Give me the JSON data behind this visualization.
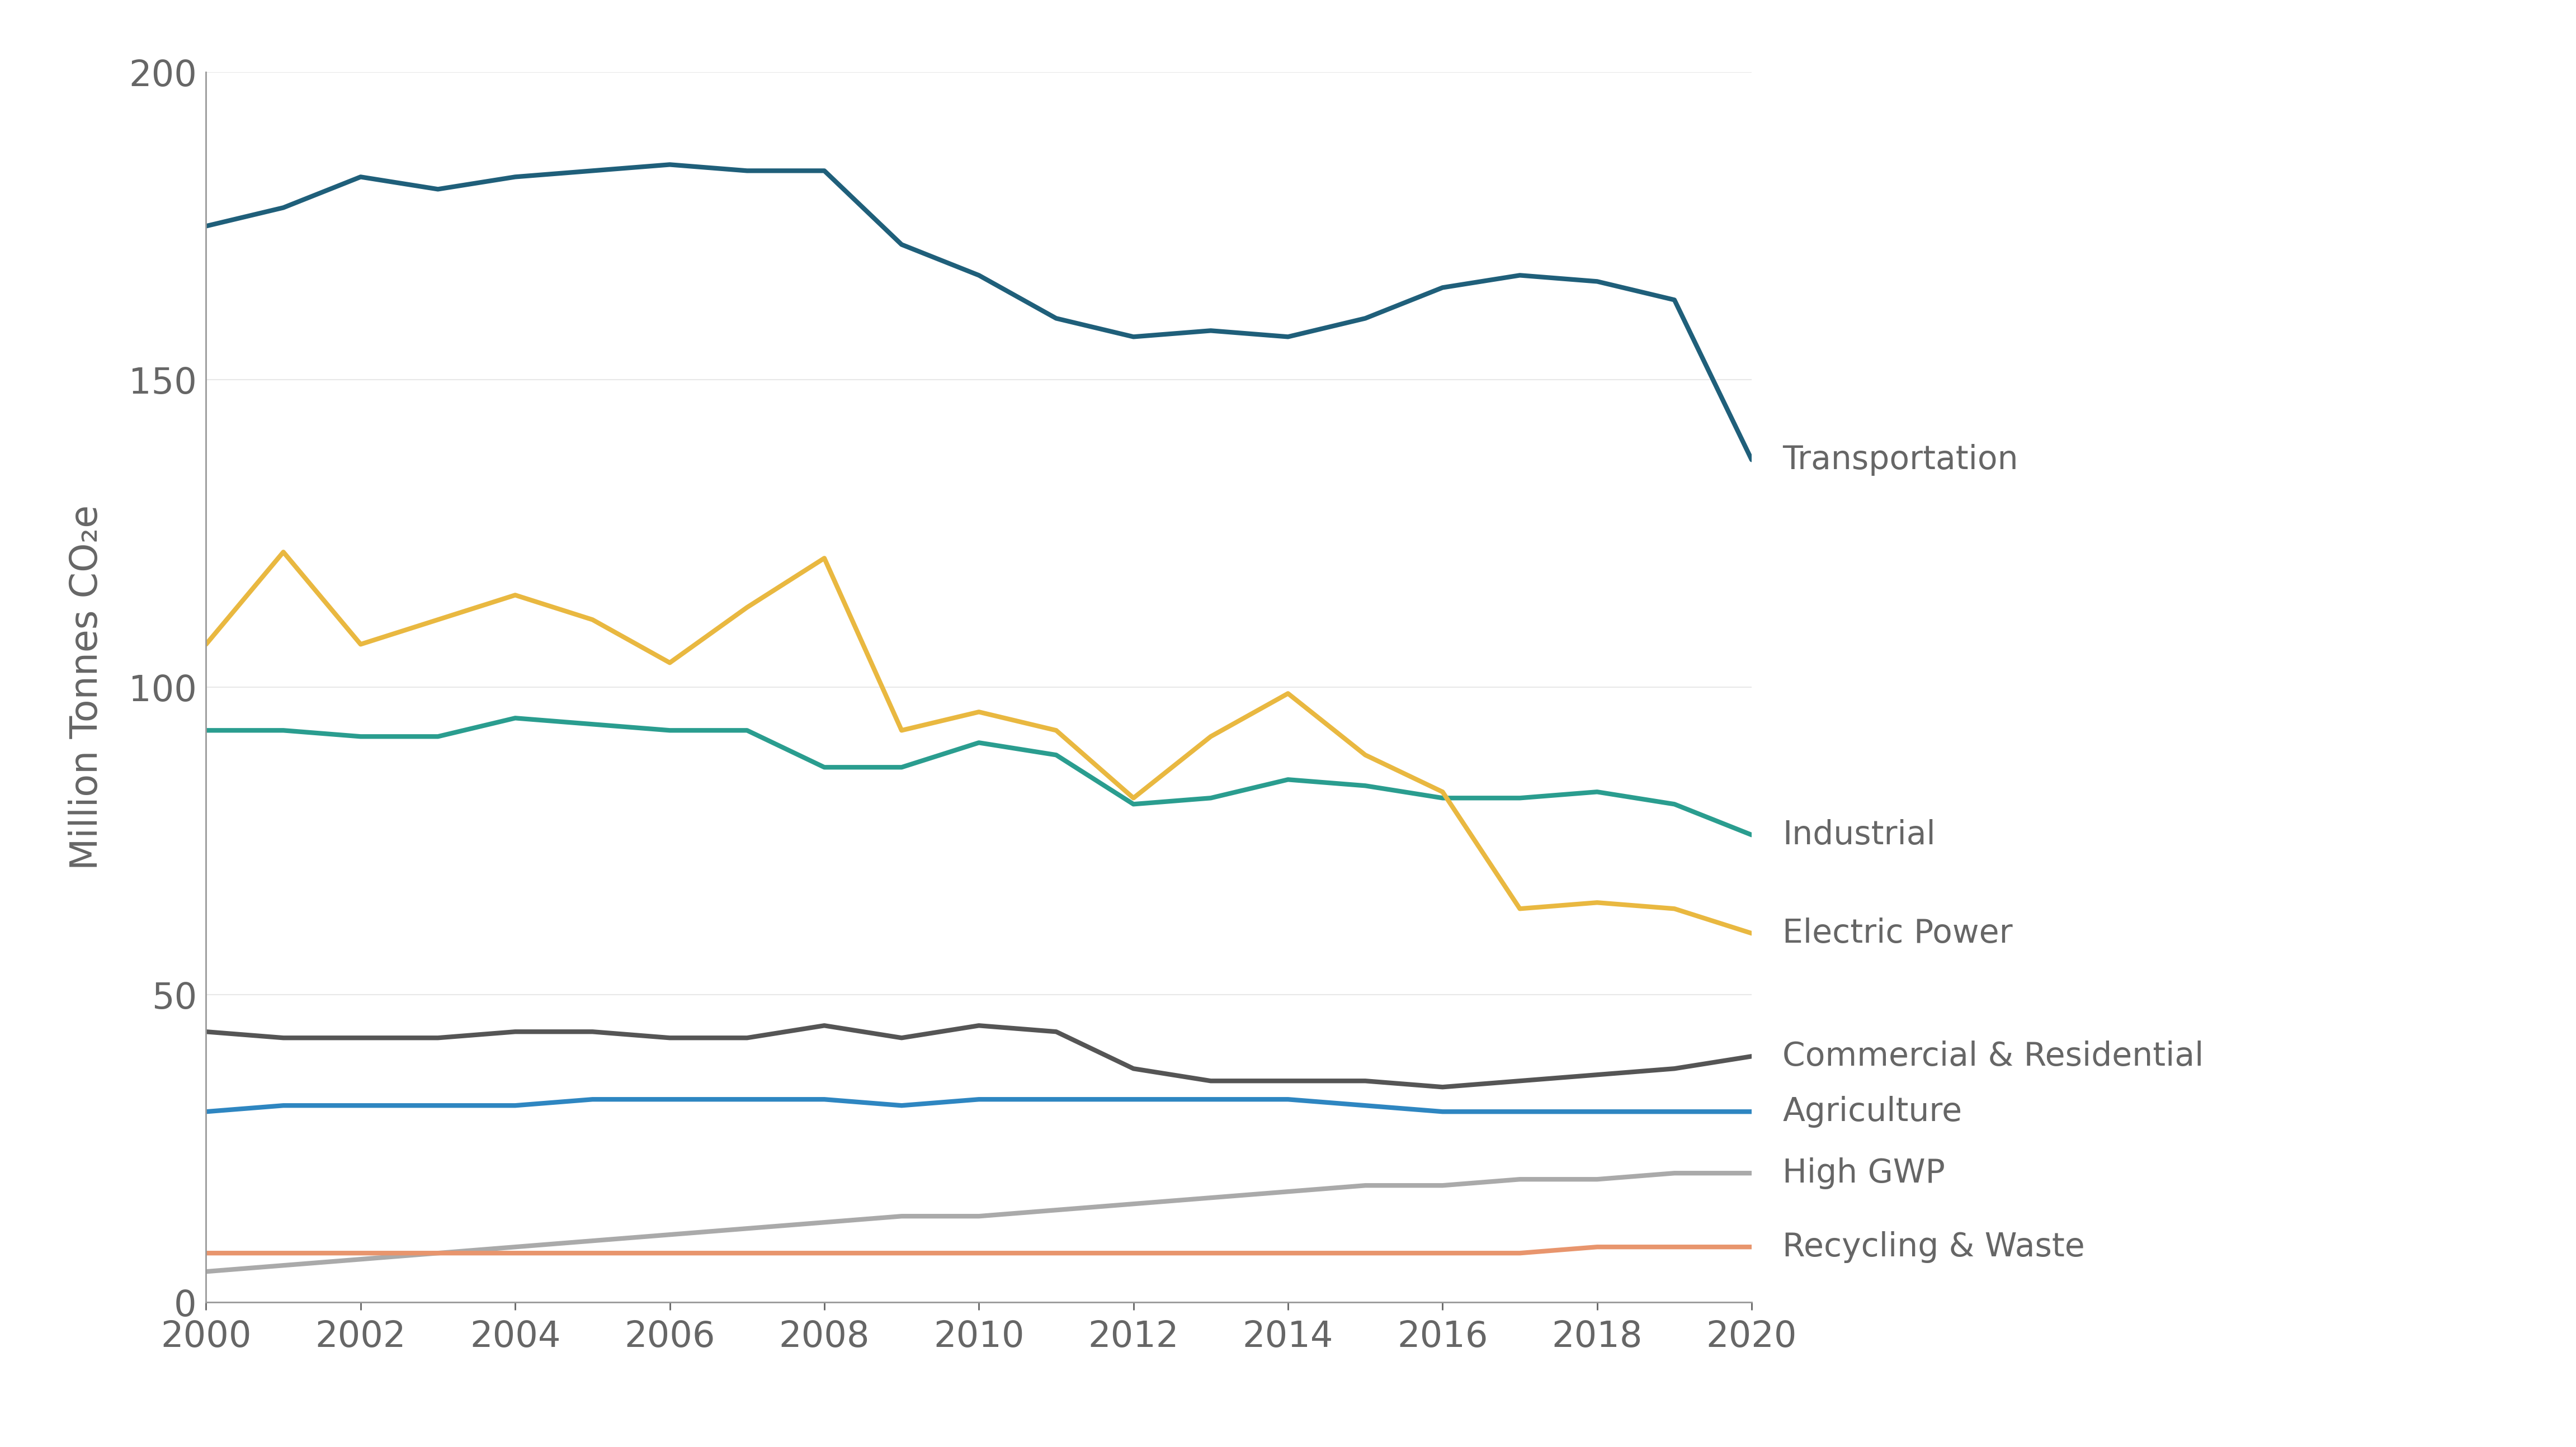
{
  "ylabel": "Million Tonnes CO₂e",
  "xlim": [
    2000,
    2020
  ],
  "ylim": [
    0,
    200
  ],
  "yticks": [
    0,
    50,
    100,
    150,
    200
  ],
  "xticks": [
    2000,
    2002,
    2004,
    2006,
    2008,
    2010,
    2012,
    2014,
    2016,
    2018,
    2020
  ],
  "background_color": "#ffffff",
  "series": [
    {
      "label": "Transportation",
      "color": "#1f5f7a",
      "linewidth": 6.0,
      "years": [
        2000,
        2001,
        2002,
        2003,
        2004,
        2005,
        2006,
        2007,
        2008,
        2009,
        2010,
        2011,
        2012,
        2013,
        2014,
        2015,
        2016,
        2017,
        2018,
        2019,
        2020
      ],
      "values": [
        175,
        178,
        183,
        181,
        183,
        184,
        185,
        184,
        184,
        172,
        167,
        160,
        157,
        158,
        157,
        160,
        165,
        167,
        166,
        163,
        137
      ]
    },
    {
      "label": "Industrial",
      "color": "#2a9d8f",
      "linewidth": 6.0,
      "years": [
        2000,
        2001,
        2002,
        2003,
        2004,
        2005,
        2006,
        2007,
        2008,
        2009,
        2010,
        2011,
        2012,
        2013,
        2014,
        2015,
        2016,
        2017,
        2018,
        2019,
        2020
      ],
      "values": [
        93,
        93,
        92,
        92,
        95,
        94,
        93,
        93,
        87,
        87,
        91,
        89,
        81,
        82,
        85,
        84,
        82,
        82,
        83,
        81,
        76
      ]
    },
    {
      "label": "Electric Power",
      "color": "#e9b840",
      "linewidth": 6.0,
      "years": [
        2000,
        2001,
        2002,
        2003,
        2004,
        2005,
        2006,
        2007,
        2008,
        2009,
        2010,
        2011,
        2012,
        2013,
        2014,
        2015,
        2016,
        2017,
        2018,
        2019,
        2020
      ],
      "values": [
        107,
        122,
        107,
        111,
        115,
        111,
        104,
        113,
        121,
        93,
        96,
        93,
        82,
        92,
        99,
        89,
        83,
        64,
        65,
        64,
        60
      ]
    },
    {
      "label": "Commercial & Residential",
      "color": "#555555",
      "linewidth": 6.0,
      "years": [
        2000,
        2001,
        2002,
        2003,
        2004,
        2005,
        2006,
        2007,
        2008,
        2009,
        2010,
        2011,
        2012,
        2013,
        2014,
        2015,
        2016,
        2017,
        2018,
        2019,
        2020
      ],
      "values": [
        44,
        43,
        43,
        43,
        44,
        44,
        43,
        43,
        45,
        43,
        45,
        44,
        38,
        36,
        36,
        36,
        35,
        36,
        37,
        38,
        40
      ]
    },
    {
      "label": "Agriculture",
      "color": "#2e86c1",
      "linewidth": 6.0,
      "years": [
        2000,
        2001,
        2002,
        2003,
        2004,
        2005,
        2006,
        2007,
        2008,
        2009,
        2010,
        2011,
        2012,
        2013,
        2014,
        2015,
        2016,
        2017,
        2018,
        2019,
        2020
      ],
      "values": [
        31,
        32,
        32,
        32,
        32,
        33,
        33,
        33,
        33,
        32,
        33,
        33,
        33,
        33,
        33,
        32,
        31,
        31,
        31,
        31,
        31
      ]
    },
    {
      "label": "High GWP",
      "color": "#aaaaaa",
      "linewidth": 6.0,
      "years": [
        2000,
        2001,
        2002,
        2003,
        2004,
        2005,
        2006,
        2007,
        2008,
        2009,
        2010,
        2011,
        2012,
        2013,
        2014,
        2015,
        2016,
        2017,
        2018,
        2019,
        2020
      ],
      "values": [
        5,
        6,
        7,
        8,
        9,
        10,
        11,
        12,
        13,
        14,
        14,
        15,
        16,
        17,
        18,
        19,
        19,
        20,
        20,
        21,
        21
      ]
    },
    {
      "label": "Recycling & Waste",
      "color": "#e8956d",
      "linewidth": 6.0,
      "years": [
        2000,
        2001,
        2002,
        2003,
        2004,
        2005,
        2006,
        2007,
        2008,
        2009,
        2010,
        2011,
        2012,
        2013,
        2014,
        2015,
        2016,
        2017,
        2018,
        2019,
        2020
      ],
      "values": [
        8,
        8,
        8,
        8,
        8,
        8,
        8,
        8,
        8,
        8,
        8,
        8,
        8,
        8,
        8,
        8,
        8,
        8,
        9,
        9,
        9
      ]
    }
  ],
  "annotations": [
    {
      "label": "Transportation",
      "y": 137,
      "color": "#666666",
      "fontsize": 42
    },
    {
      "label": "Industrial",
      "y": 76,
      "color": "#666666",
      "fontsize": 42
    },
    {
      "label": "Electric Power",
      "y": 60,
      "color": "#666666",
      "fontsize": 42
    },
    {
      "label": "Commercial & Residential",
      "y": 40,
      "color": "#666666",
      "fontsize": 42
    },
    {
      "label": "Agriculture",
      "y": 31,
      "color": "#666666",
      "fontsize": 42
    },
    {
      "label": "High GWP",
      "y": 21,
      "color": "#666666",
      "fontsize": 42
    },
    {
      "label": "Recycling & Waste",
      "y": 9,
      "color": "#666666",
      "fontsize": 42
    }
  ]
}
